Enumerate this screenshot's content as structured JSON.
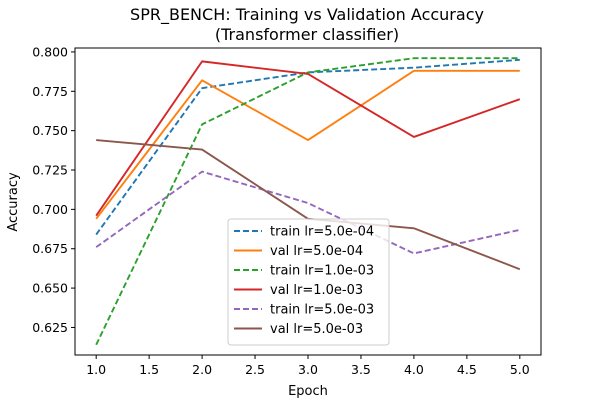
{
  "chart_data": {
    "type": "line",
    "title": "SPR_BENCH: Training vs Validation Accuracy",
    "subtitle": "(Transformer classifier)",
    "xlabel": "Epoch",
    "ylabel": "Accuracy",
    "x": [
      1,
      2,
      3,
      4,
      5
    ],
    "xlim": [
      0.8,
      5.2
    ],
    "ylim": [
      0.6075,
      0.8025
    ],
    "xticks": [
      "1.0",
      "1.5",
      "2.0",
      "2.5",
      "3.0",
      "3.5",
      "4.0",
      "4.5",
      "5.0"
    ],
    "yticks": [
      "0.625",
      "0.650",
      "0.675",
      "0.700",
      "0.725",
      "0.750",
      "0.775",
      "0.800"
    ],
    "grid": false,
    "legend_position": "lower-center",
    "series": [
      {
        "name": "train lr=5.0e-04",
        "color": "#1f77b4",
        "dash": true,
        "values": [
          0.684,
          0.777,
          0.787,
          0.79,
          0.795
        ]
      },
      {
        "name": "val lr=5.0e-04",
        "color": "#ff7f0e",
        "dash": false,
        "values": [
          0.694,
          0.782,
          0.744,
          0.788,
          0.788
        ]
      },
      {
        "name": "train lr=1.0e-03",
        "color": "#2ca02c",
        "dash": true,
        "values": [
          0.614,
          0.754,
          0.787,
          0.796,
          0.796
        ]
      },
      {
        "name": "val lr=1.0e-03",
        "color": "#d62728",
        "dash": false,
        "values": [
          0.696,
          0.794,
          0.786,
          0.746,
          0.77
        ]
      },
      {
        "name": "train lr=5.0e-03",
        "color": "#9467bd",
        "dash": true,
        "values": [
          0.676,
          0.724,
          0.704,
          0.672,
          0.687
        ]
      },
      {
        "name": "val lr=5.0e-03",
        "color": "#8c564b",
        "dash": false,
        "values": [
          0.744,
          0.738,
          0.694,
          0.688,
          0.662
        ]
      }
    ]
  }
}
